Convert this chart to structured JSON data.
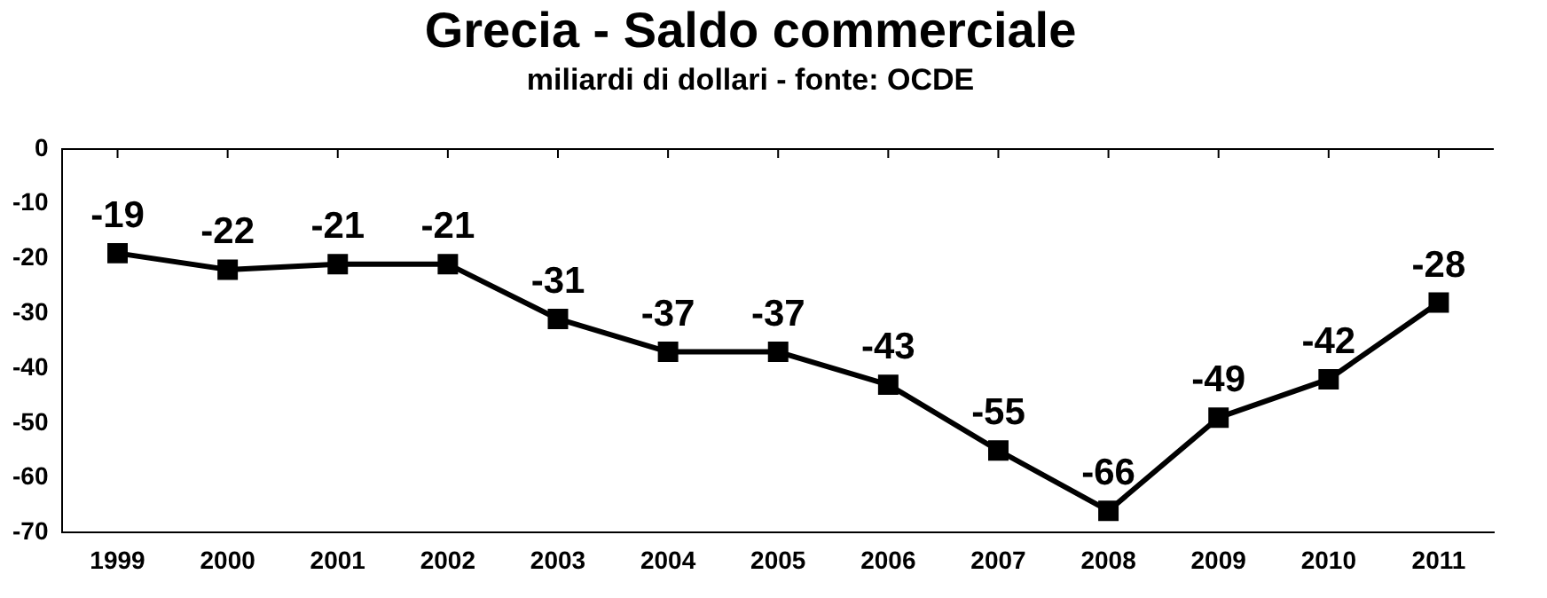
{
  "chart_data": {
    "type": "line",
    "title": "Grecia - Saldo commerciale",
    "subtitle": "miliardi di dollari - fonte: OCDE",
    "categories": [
      "1999",
      "2000",
      "2001",
      "2002",
      "2003",
      "2004",
      "2005",
      "2006",
      "2007",
      "2008",
      "2009",
      "2010",
      "2011"
    ],
    "series": [
      {
        "color": "#000000",
        "values": [
          -19,
          -22,
          -21,
          -21,
          -31,
          -37,
          -37,
          -43,
          -55,
          -66,
          -49,
          -42,
          -28
        ]
      }
    ],
    "ylim": [
      -70,
      0
    ],
    "yticks": [
      0,
      -10,
      -20,
      -30,
      -40,
      -50,
      -60,
      -70
    ],
    "grid": false,
    "legend": false,
    "marker": "square",
    "line_style": "solid",
    "data_labels": true
  }
}
